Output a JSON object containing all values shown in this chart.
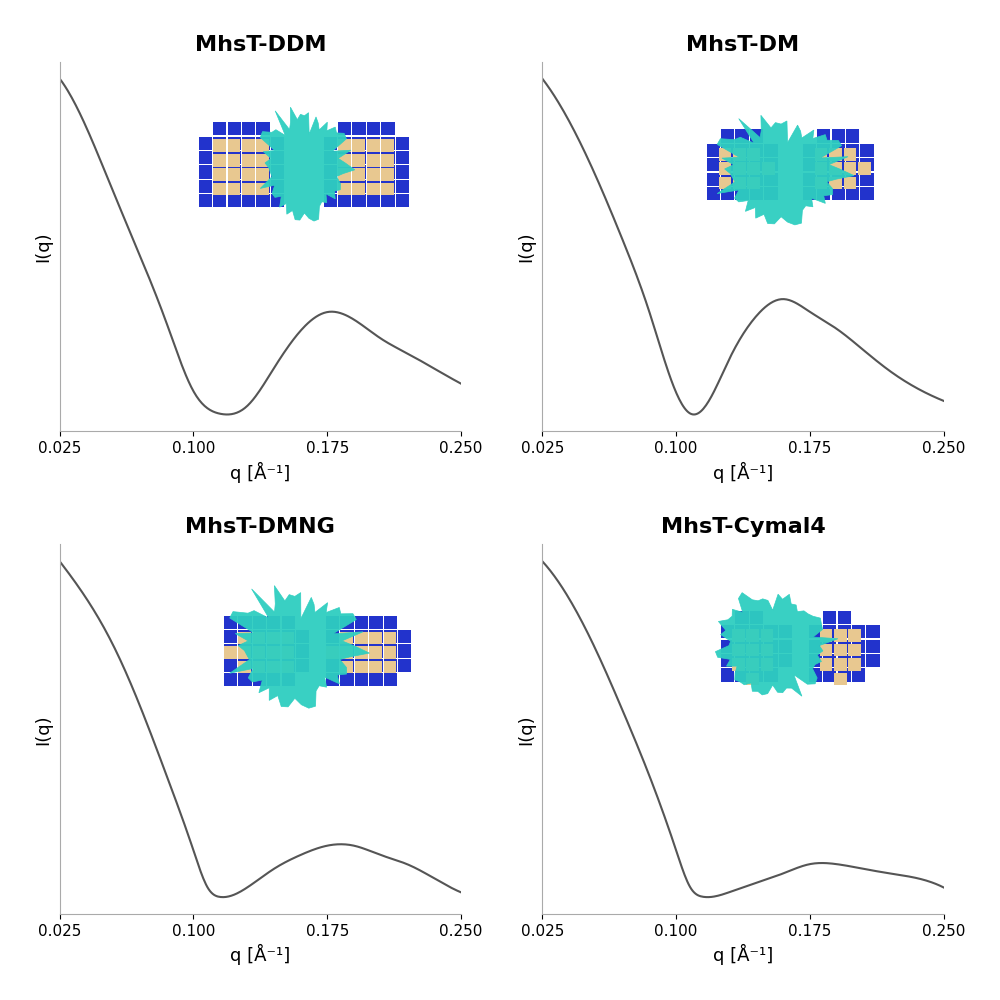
{
  "titles": [
    "MhsT-DDM",
    "MhsT-DM",
    "MhsT-DMNG",
    "MhsT-Cymal4"
  ],
  "xlim": [
    0.025,
    0.25
  ],
  "xlabel": "q [Å⁻¹]",
  "ylabel": "I(q)",
  "xticks": [
    0.025,
    0.1,
    0.175,
    0.25
  ],
  "xtick_labels": [
    "0.025",
    "0.100",
    "0.175",
    "0.250"
  ],
  "background_color": "#ffffff",
  "line_color_gray": "#555555",
  "line_color_teal": "#2a9d8f",
  "color_blue": "#2222cc",
  "color_orange": "#e8c88a",
  "color_teal": "#2ecec0",
  "title_fontsize": 16,
  "axis_label_fontsize": 13,
  "tick_fontsize": 11,
  "curves": {
    "DDM": {
      "x": [
        0.025,
        0.04,
        0.055,
        0.07,
        0.085,
        0.1,
        0.115,
        0.13,
        0.145,
        0.16,
        0.175,
        0.19,
        0.205,
        0.22,
        0.235,
        0.25
      ],
      "y": [
        0.95,
        0.82,
        0.65,
        0.48,
        0.3,
        0.12,
        0.06,
        0.08,
        0.18,
        0.28,
        0.33,
        0.31,
        0.26,
        0.22,
        0.18,
        0.14
      ]
    },
    "DM": {
      "x": [
        0.025,
        0.04,
        0.055,
        0.07,
        0.085,
        0.1,
        0.108,
        0.115,
        0.13,
        0.145,
        0.16,
        0.175,
        0.19,
        0.205,
        0.22,
        0.235,
        0.25
      ],
      "y": [
        0.88,
        0.78,
        0.65,
        0.5,
        0.33,
        0.14,
        0.09,
        0.1,
        0.22,
        0.32,
        0.36,
        0.33,
        0.29,
        0.24,
        0.19,
        0.15,
        0.12
      ]
    },
    "DMNG": {
      "x": [
        0.025,
        0.04,
        0.055,
        0.07,
        0.085,
        0.1,
        0.108,
        0.115,
        0.13,
        0.145,
        0.16,
        0.175,
        0.19,
        0.205,
        0.22,
        0.235,
        0.25
      ],
      "y": [
        0.88,
        0.8,
        0.7,
        0.57,
        0.42,
        0.26,
        0.18,
        0.16,
        0.18,
        0.22,
        0.25,
        0.27,
        0.27,
        0.25,
        0.23,
        0.2,
        0.17
      ]
    },
    "Cymal4": {
      "x": [
        0.025,
        0.04,
        0.055,
        0.07,
        0.085,
        0.1,
        0.108,
        0.115,
        0.13,
        0.145,
        0.16,
        0.175,
        0.19,
        0.205,
        0.22,
        0.235,
        0.25
      ],
      "y": [
        0.92,
        0.84,
        0.73,
        0.6,
        0.46,
        0.3,
        0.22,
        0.2,
        0.21,
        0.23,
        0.25,
        0.27,
        0.27,
        0.26,
        0.25,
        0.24,
        0.22
      ]
    }
  }
}
